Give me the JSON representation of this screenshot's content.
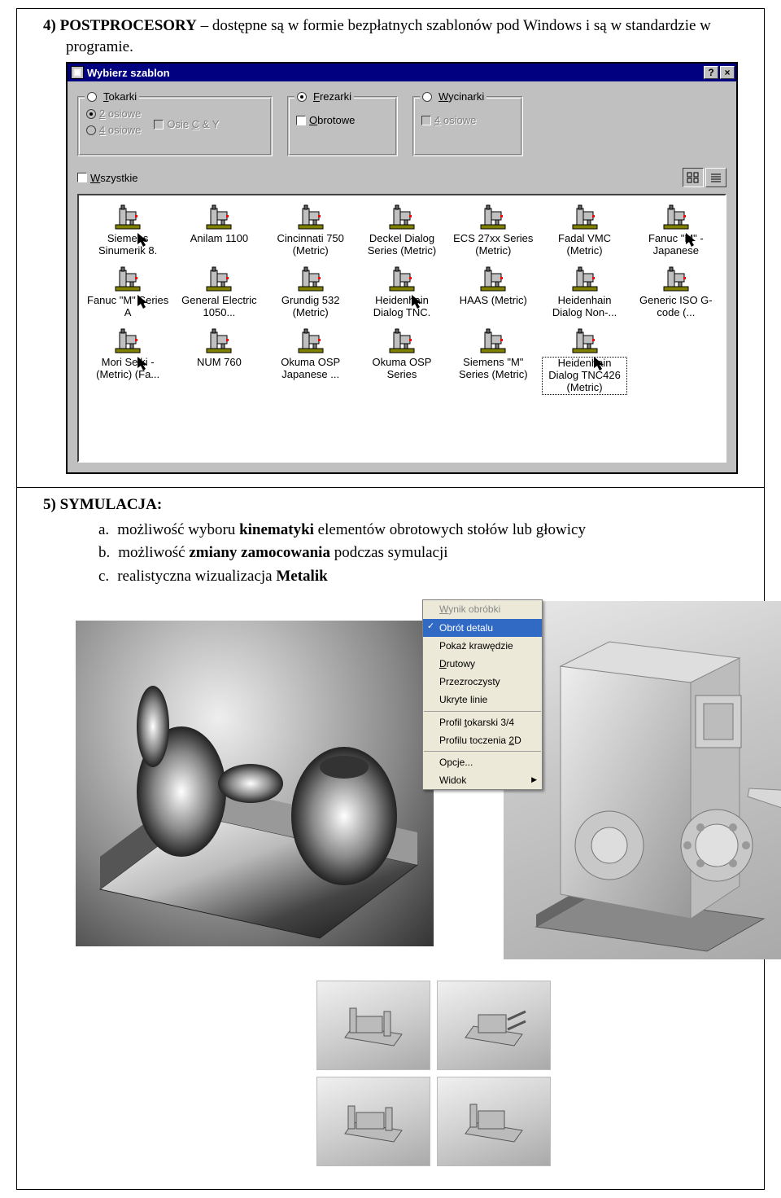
{
  "section4": {
    "num": "4)",
    "titleA": "P",
    "titleB": "OSTPROCESORY",
    "rest": " – dostępne są w formie bezpłatnych szablonów pod Windows i są w standardzie w programie."
  },
  "dialog": {
    "title": "Wybierz szablon",
    "helpBtn": "?",
    "closeBtn": "×",
    "group1": {
      "legend": "Tokarki",
      "legendUnder": "T",
      "checked": false,
      "opt1": "2 osiowe",
      "opt1Under": "2",
      "opt2": "4 osiowe",
      "opt2Under": "4",
      "chkCY": "Osie C & Y",
      "chkCYUnder": "C"
    },
    "group2": {
      "legend": "Frezarki",
      "legendUnder": "F",
      "checked": true,
      "chkObr": "Obrotowe",
      "chkObrUnder": "O"
    },
    "group3": {
      "legend": "Wycinarki",
      "legendUnder": "W",
      "checked": false,
      "chk4": "4 osiowe",
      "chk4Under": "4"
    },
    "allChk": "Wszystkie",
    "allChkUnder": "W",
    "items": [
      {
        "label": "Siemens Sinumerik 8.",
        "cursor": true
      },
      {
        "label": "Anilam 1100"
      },
      {
        "label": "Cincinnati 750 (Metric)"
      },
      {
        "label": "Deckel Dialog Series (Metric)"
      },
      {
        "label": "ECS 27xx Series (Metric)"
      },
      {
        "label": "Fadal VMC (Metric)"
      },
      {
        "label": "Fanuc \"M\" - Japanese",
        "cursor": true
      },
      {
        "label": "Fanuc \"M\" Series A",
        "cursor": true
      },
      {
        "label": "General Electric 1050..."
      },
      {
        "label": "Grundig 532 (Metric)"
      },
      {
        "label": "Heidenhain Dialog TNC.",
        "cursor": true
      },
      {
        "label": "HAAS (Metric)"
      },
      {
        "label": "Heidenhain Dialog Non-..."
      },
      {
        "label": "Generic ISO G-code (..."
      },
      {
        "label": "Mori Seiki - (Metric) (Fa...",
        "cursor": true
      },
      {
        "label": "NUM 760"
      },
      {
        "label": "Okuma OSP Japanese ..."
      },
      {
        "label": "Okuma OSP Series"
      },
      {
        "label": "Siemens \"M\" Series (Metric)"
      },
      {
        "label": "Heidenhain Dialog TNC426 (Metric)",
        "selected": true,
        "cursor": true
      }
    ]
  },
  "section5": {
    "num": "5)",
    "titleA": "S",
    "titleB": "YMULACJA",
    "colon": ":",
    "items": [
      {
        "letter": "a.",
        "pre": "możliwość wyboru ",
        "bold": "kinematyki",
        "post": " elementów obrotowych stołów lub głowicy"
      },
      {
        "letter": "b.",
        "pre": "możliwość ",
        "bold": "zmiany zamocowania",
        "post": " podczas symulacji"
      },
      {
        "letter": "c.",
        "pre": "realistyczna wizualizacja ",
        "bold": "Metalik",
        "post": ""
      }
    ]
  },
  "ctxMenu": {
    "items": [
      {
        "label": "Wynik obróbki",
        "disabled": true,
        "under": "W"
      },
      {
        "label": "Obrót detalu",
        "selected": true
      },
      {
        "label": "Pokaż krawędzie"
      },
      {
        "label": "Drutowy",
        "under": "D"
      },
      {
        "label": "Przezroczysty"
      },
      {
        "label": "Ukryte linie"
      },
      {
        "sep": true
      },
      {
        "label": "Profil tokarski 3/4",
        "under": "t"
      },
      {
        "label": "Profilu toczenia 2D",
        "under": "2"
      },
      {
        "sep": true
      },
      {
        "label": "Opcje..."
      },
      {
        "label": "Widok",
        "arrow": true
      }
    ]
  },
  "colors": {
    "win95Face": "#c0c0c0",
    "titlebar": "#000080",
    "menuBg": "#ece9d8",
    "menuSel": "#316ac5"
  }
}
